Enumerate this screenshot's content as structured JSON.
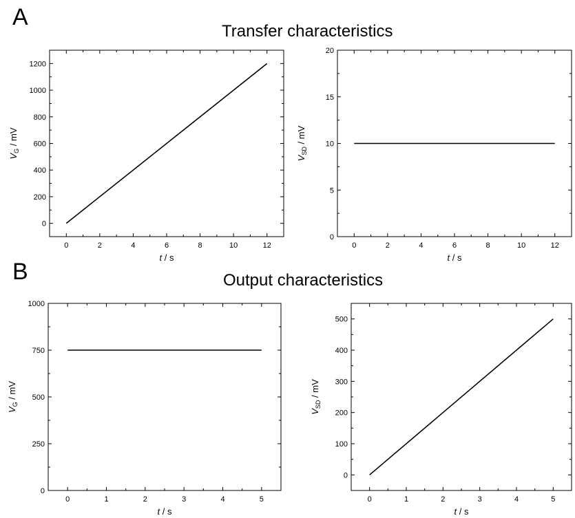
{
  "figure": {
    "panel_a_label": "A",
    "panel_b_label": "B",
    "panel_a_title": "Transfer characteristics",
    "panel_b_title": "Output characteristics"
  },
  "chart_data": [
    {
      "type": "line",
      "panel": "A",
      "xlabel": {
        "italic": "t",
        "rest": " / s"
      },
      "ylabel": {
        "italic": "V",
        "sub": "G",
        "rest": " / mV"
      },
      "xlim": [
        -1,
        13
      ],
      "ylim": [
        -100,
        1300
      ],
      "xticks": [
        0,
        2,
        4,
        6,
        8,
        10,
        12
      ],
      "xtick_labels": [
        "0",
        "2",
        "4",
        "6",
        "8",
        "10",
        "12"
      ],
      "yticks": [
        0,
        200,
        400,
        600,
        800,
        1000,
        1200
      ],
      "ytick_labels": [
        "0",
        "200",
        "400",
        "600",
        "800",
        "1000",
        "1200"
      ],
      "grid": false,
      "series": [
        {
          "x": [
            0,
            12
          ],
          "y": [
            0,
            1200
          ]
        }
      ]
    },
    {
      "type": "line",
      "panel": "A",
      "xlabel": {
        "italic": "t",
        "rest": " / s"
      },
      "ylabel": {
        "italic": "V",
        "sub": "SD",
        "rest": " / mV"
      },
      "xlim": [
        -1,
        13
      ],
      "ylim": [
        0,
        20
      ],
      "xticks": [
        0,
        2,
        4,
        6,
        8,
        10,
        12
      ],
      "xtick_labels": [
        "0",
        "2",
        "4",
        "6",
        "8",
        "10",
        "12"
      ],
      "yticks": [
        0,
        5,
        10,
        15,
        20
      ],
      "ytick_labels": [
        "0",
        "5",
        "10",
        "15",
        "20"
      ],
      "grid": false,
      "series": [
        {
          "x": [
            0,
            12
          ],
          "y": [
            10,
            10
          ]
        }
      ]
    },
    {
      "type": "line",
      "panel": "B",
      "xlabel": {
        "italic": "t",
        "rest": " / s"
      },
      "ylabel": {
        "italic": "V",
        "sub": "G",
        "rest": " / mV"
      },
      "xlim": [
        -0.5,
        5.5
      ],
      "ylim": [
        0,
        1000
      ],
      "xticks": [
        0,
        1,
        2,
        3,
        4,
        5
      ],
      "xtick_labels": [
        "0",
        "1",
        "2",
        "3",
        "4",
        "5"
      ],
      "yticks": [
        0,
        250,
        500,
        750,
        1000
      ],
      "ytick_labels": [
        "0",
        "250",
        "500",
        "750",
        "1000"
      ],
      "grid": false,
      "series": [
        {
          "x": [
            0,
            5
          ],
          "y": [
            750,
            750
          ]
        }
      ]
    },
    {
      "type": "line",
      "panel": "B",
      "xlabel": {
        "italic": "t",
        "rest": " / s"
      },
      "ylabel": {
        "italic": "V",
        "sub": "SD",
        "rest": " / mV"
      },
      "xlim": [
        -0.5,
        5.5
      ],
      "ylim": [
        -50,
        550
      ],
      "xticks": [
        0,
        1,
        2,
        3,
        4,
        5
      ],
      "xtick_labels": [
        "0",
        "1",
        "2",
        "3",
        "4",
        "5"
      ],
      "yticks": [
        0,
        100,
        200,
        300,
        400,
        500
      ],
      "ytick_labels": [
        "0",
        "100",
        "200",
        "300",
        "400",
        "500"
      ],
      "grid": false,
      "series": [
        {
          "x": [
            0,
            5
          ],
          "y": [
            0,
            500
          ]
        }
      ]
    }
  ]
}
